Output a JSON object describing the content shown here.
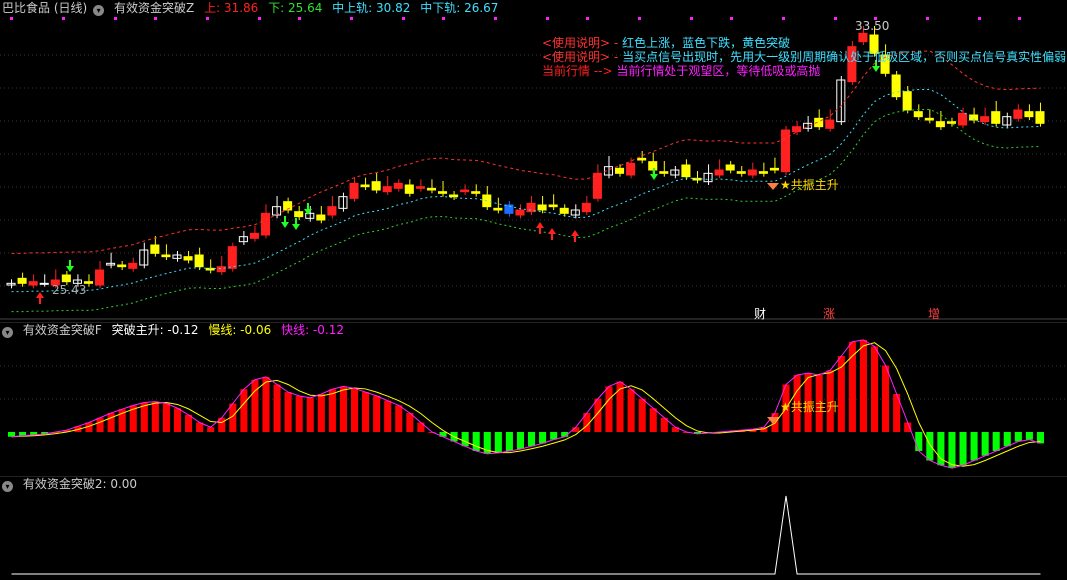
{
  "header": {
    "stock": "巴比食品 (日线)",
    "indicator": "有效资金突破Z",
    "up_label": "上: 31.86",
    "down_label": "下: 25.64",
    "mid_up_label": "中上轨: 30.82",
    "mid_down_label": "中下轨: 26.67"
  },
  "notes": [
    {
      "tag": "<使用说明> -",
      "text": "红色上涨，蓝色下跌，黄色突破"
    },
    {
      "tag": "<使用说明> -",
      "text": "当买点信号出现时，先用大一级别周期确认处于低吸区域，否则买点信号真实性偏弱 )"
    },
    {
      "tag": "当前行情 -->",
      "text": "当前行情处于观望区，等待低吸或高抛"
    }
  ],
  "labels": {
    "high": "33.50",
    "low": "25.43",
    "resonance": "★共振主升",
    "resonance2": "★共振主升",
    "m1": "财",
    "m2": "涨",
    "m3": "增"
  },
  "panel2": {
    "indicator": "有效资金突破F",
    "main": "突破主升: -0.12",
    "slow": "慢线: -0.06",
    "fast": "快线: -0.12"
  },
  "panel3": {
    "indicator": "有效资金突破2",
    "value": ": 0.00"
  },
  "colors": {
    "up": "#ff2020",
    "down": "#ffff00",
    "fall": "#1e6fff",
    "upper": "#ff3030",
    "mid": "#40e0ff",
    "lower": "#30d030",
    "hist_pos": "#ff0000",
    "hist_neg": "#00ff00"
  },
  "chart_data": [
    {
      "type": "candlestick",
      "closes": [
        25.6,
        25.6,
        25.65,
        25.6,
        25.7,
        25.65,
        25.7,
        25.6,
        26.0,
        26.2,
        26.1,
        26.2,
        26.6,
        26.5,
        26.4,
        26.45,
        26.3,
        26.1,
        26.0,
        26.1,
        26.7,
        27.0,
        27.1,
        27.7,
        27.9,
        27.8,
        27.6,
        27.7,
        27.5,
        27.9,
        28.2,
        28.6,
        28.5,
        28.4,
        28.5,
        28.6,
        28.3,
        28.5,
        28.4,
        28.3,
        28.2,
        28.4,
        28.3,
        27.9,
        27.8,
        27.7,
        27.8,
        28.0,
        27.8,
        27.9,
        27.7,
        27.8,
        28.0,
        28.9,
        29.1,
        28.9,
        29.2,
        29.3,
        29.0,
        28.9,
        29.0,
        28.8,
        28.7,
        28.9,
        29.0,
        29.0,
        28.9,
        29.0,
        28.9,
        29.0,
        30.2,
        30.3,
        30.4,
        30.3,
        30.5,
        31.7,
        32.7,
        33.1,
        32.5,
        31.9,
        31.2,
        30.8,
        30.6,
        30.5,
        30.3,
        30.4,
        30.7,
        30.5,
        30.6,
        30.4,
        30.6,
        30.8,
        30.6,
        30.4
      ],
      "price_range": [
        25.2,
        33.8
      ]
    },
    {
      "type": "bar",
      "series": [
        {
          "name": "突破主升",
          "values": [
            -0.05,
            -0.04,
            -0.03,
            -0.02,
            0,
            0.02,
            0.06,
            0.1,
            0.15,
            0.2,
            0.24,
            0.28,
            0.31,
            0.32,
            0.3,
            0.25,
            0.18,
            0.1,
            0.05,
            0.15,
            0.3,
            0.45,
            0.55,
            0.58,
            0.5,
            0.42,
            0.38,
            0.36,
            0.4,
            0.45,
            0.48,
            0.46,
            0.42,
            0.38,
            0.33,
            0.28,
            0.2,
            0.1,
            0.0,
            -0.05,
            -0.1,
            -0.15,
            -0.2,
            -0.23,
            -0.22,
            -0.2,
            -0.18,
            -0.15,
            -0.12,
            -0.08,
            -0.05,
            0.05,
            0.2,
            0.35,
            0.48,
            0.53,
            0.45,
            0.35,
            0.25,
            0.15,
            0.05,
            0.0,
            -0.02,
            -0.01,
            0,
            0.01,
            0.02,
            0.03,
            0.05,
            0.2,
            0.5,
            0.6,
            0.62,
            0.6,
            0.65,
            0.8,
            0.95,
            0.97,
            0.9,
            0.7,
            0.4,
            0.1,
            -0.2,
            -0.3,
            -0.35,
            -0.38,
            -0.35,
            -0.3,
            -0.25,
            -0.2,
            -0.15,
            -0.1,
            -0.08,
            -0.12
          ]
        }
      ],
      "zero_line": true
    },
    {
      "type": "line",
      "series": [
        {
          "name": "有效资金突破2",
          "values": [
            0,
            0,
            0,
            0,
            0,
            0,
            0,
            0,
            0,
            0,
            0,
            0,
            0,
            0,
            0,
            0,
            0,
            0,
            0,
            0,
            0,
            0,
            0,
            0,
            0,
            0,
            0,
            0,
            0,
            0,
            0,
            0,
            0,
            0,
            0,
            0,
            0,
            0,
            0,
            0,
            0,
            0,
            0,
            0,
            0,
            0,
            0,
            0,
            0,
            0,
            0,
            0,
            0,
            0,
            0,
            0,
            0,
            0,
            0,
            0,
            0,
            0,
            0,
            0,
            0,
            0,
            0,
            0,
            0,
            0,
            1,
            0,
            0,
            0,
            0,
            0,
            0,
            0,
            0,
            0,
            0,
            0,
            0,
            0,
            0,
            0,
            0,
            0,
            0,
            0,
            0,
            0,
            0,
            0
          ]
        }
      ]
    }
  ]
}
